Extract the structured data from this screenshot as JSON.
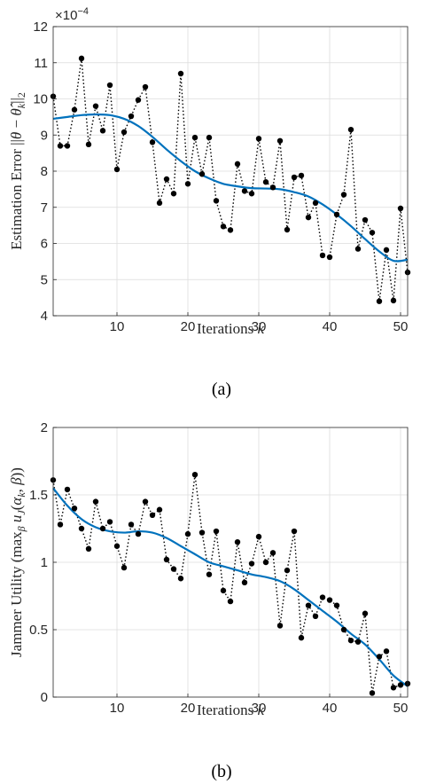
{
  "chart_data": [
    {
      "type": "line",
      "panel": "(a)",
      "xlabel": "Iterations k",
      "ylabel": "Estimation Error ||θ − θ̂k||2",
      "y_multiplier": "×10⁻⁴",
      "xlim": [
        1,
        51
      ],
      "ylim": [
        4,
        12
      ],
      "xticks": [
        10,
        20,
        30,
        40,
        50
      ],
      "yticks": [
        4,
        5,
        6,
        7,
        8,
        9,
        10,
        11,
        12
      ],
      "grid": true,
      "series": [
        {
          "style": "dotted-black-markers",
          "color": "#000000",
          "x": [
            1,
            2,
            3,
            4,
            5,
            6,
            7,
            8,
            9,
            10,
            11,
            12,
            13,
            14,
            15,
            16,
            17,
            18,
            19,
            20,
            21,
            22,
            23,
            24,
            25,
            26,
            27,
            28,
            29,
            30,
            31,
            32,
            33,
            34,
            35,
            36,
            37,
            38,
            39,
            40,
            41,
            42,
            43,
            44,
            45,
            46,
            47,
            48,
            49,
            50,
            51
          ],
          "y": [
            10.07,
            8.7,
            8.7,
            9.7,
            11.12,
            8.74,
            9.8,
            9.12,
            10.38,
            8.05,
            9.08,
            9.52,
            9.97,
            10.33,
            8.8,
            7.12,
            7.78,
            7.38,
            10.7,
            7.65,
            8.93,
            7.92,
            8.93,
            7.18,
            6.47,
            6.37,
            8.2,
            7.45,
            7.38,
            8.9,
            7.7,
            7.55,
            8.84,
            6.38,
            7.83,
            7.88,
            6.72,
            7.12,
            5.67,
            5.62,
            6.8,
            7.35,
            9.15,
            5.85,
            6.65,
            6.3,
            4.4,
            5.82,
            4.42,
            6.97,
            5.2
          ]
        },
        {
          "style": "smooth-blue",
          "color": "#0072BD",
          "x": [
            1,
            3,
            5,
            7,
            9,
            11,
            13,
            15,
            17,
            19,
            21,
            23,
            25,
            27,
            29,
            31,
            33,
            35,
            37,
            39,
            41,
            43,
            45,
            47,
            49,
            51
          ],
          "y": [
            9.45,
            9.5,
            9.55,
            9.57,
            9.55,
            9.45,
            9.25,
            8.95,
            8.6,
            8.28,
            8.0,
            7.8,
            7.65,
            7.58,
            7.53,
            7.52,
            7.5,
            7.42,
            7.3,
            7.08,
            6.8,
            6.48,
            6.12,
            5.78,
            5.52,
            5.55
          ]
        }
      ]
    },
    {
      "type": "line",
      "panel": "(b)",
      "xlabel": "Iterations k",
      "ylabel": "Jammer Utility (maxβ uJ(αk, β))",
      "xlim": [
        1,
        51
      ],
      "ylim": [
        0,
        2
      ],
      "xticks": [
        10,
        20,
        30,
        40,
        50
      ],
      "yticks": [
        0,
        0.5,
        1,
        1.5,
        2
      ],
      "ytick_labels": [
        "0",
        "0.5",
        "1",
        "1.5",
        "2"
      ],
      "grid": true,
      "series": [
        {
          "style": "dotted-black-markers",
          "color": "#000000",
          "x": [
            1,
            2,
            3,
            4,
            5,
            6,
            7,
            8,
            9,
            10,
            11,
            12,
            13,
            14,
            15,
            16,
            17,
            18,
            19,
            20,
            21,
            22,
            23,
            24,
            25,
            26,
            27,
            28,
            29,
            30,
            31,
            32,
            33,
            34,
            35,
            36,
            37,
            38,
            39,
            40,
            41,
            42,
            43,
            44,
            45,
            46,
            47,
            48,
            49,
            50,
            51
          ],
          "y": [
            1.61,
            1.28,
            1.54,
            1.4,
            1.25,
            1.1,
            1.45,
            1.25,
            1.3,
            1.12,
            0.96,
            1.28,
            1.21,
            1.45,
            1.35,
            1.39,
            1.02,
            0.95,
            0.88,
            1.21,
            1.65,
            1.22,
            0.91,
            1.23,
            0.79,
            0.71,
            1.15,
            0.85,
            0.99,
            1.19,
            1.0,
            1.07,
            0.53,
            0.94,
            1.23,
            0.44,
            0.68,
            0.6,
            0.74,
            0.72,
            0.68,
            0.5,
            0.42,
            0.41,
            0.62,
            0.03,
            0.3,
            0.34,
            0.07,
            0.09,
            0.1
          ],
          "x_override": [
            1,
            2,
            3,
            4,
            5,
            6,
            7,
            8,
            9,
            10,
            11,
            12,
            13,
            14,
            15,
            16,
            17,
            18,
            19,
            20,
            21,
            22,
            23,
            24,
            25,
            26,
            27,
            28,
            29,
            30,
            31,
            32,
            33,
            34,
            35,
            36,
            37,
            38,
            39,
            40,
            41,
            42,
            43,
            44,
            45,
            46,
            47,
            48,
            49,
            50,
            51
          ]
        },
        {
          "style": "smooth-blue",
          "color": "#0072BD",
          "x": [
            1,
            3,
            5,
            7,
            9,
            11,
            13,
            15,
            17,
            19,
            21,
            23,
            25,
            27,
            29,
            31,
            33,
            35,
            37,
            39,
            41,
            43,
            45,
            47,
            49,
            51
          ],
          "y": [
            1.55,
            1.42,
            1.32,
            1.26,
            1.23,
            1.22,
            1.23,
            1.22,
            1.18,
            1.12,
            1.06,
            1.0,
            0.97,
            0.94,
            0.91,
            0.89,
            0.86,
            0.8,
            0.72,
            0.64,
            0.56,
            0.47,
            0.39,
            0.28,
            0.16,
            0.08
          ]
        }
      ]
    }
  ],
  "captions": {
    "a": "(a)",
    "b": "(b)"
  }
}
